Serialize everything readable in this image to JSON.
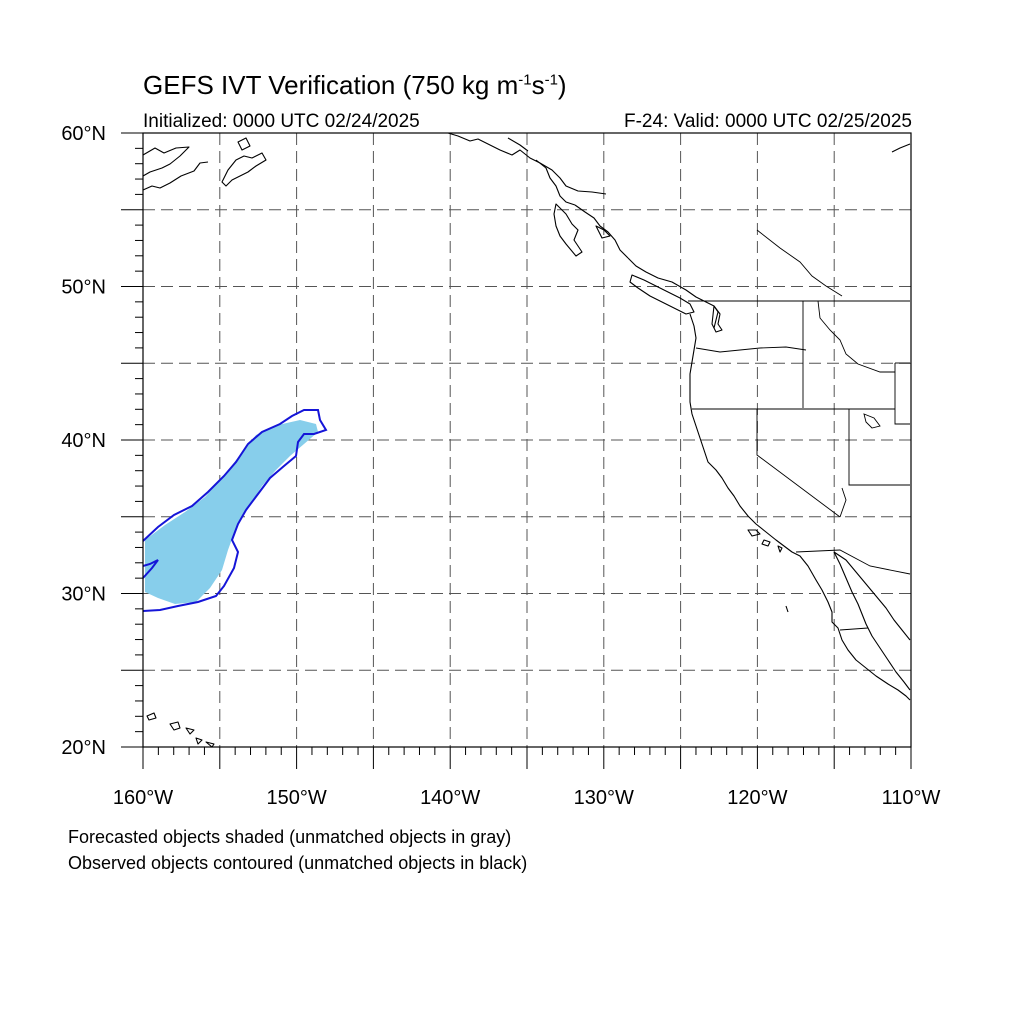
{
  "title": {
    "main": "GEFS IVT Verification (750 kg m",
    "exp1": "-1",
    "mid": "s",
    "exp2": "-1",
    "end": ")"
  },
  "subtitle": {
    "left": "Initialized: 0000 UTC 02/24/2025",
    "right": "F-24: Valid: 0000 UTC 02/25/2025"
  },
  "map": {
    "lon_range": [
      -160,
      -110
    ],
    "lat_range": [
      20,
      60
    ],
    "lon_labels": [
      "160°W",
      "150°W",
      "140°W",
      "130°W",
      "120°W",
      "110°W"
    ],
    "lat_labels": [
      "20°N",
      "30°N",
      "40°N",
      "50°N",
      "60°N"
    ],
    "grid": "dashed every 5°",
    "colors": {
      "forecast_fill": "#87CEEB",
      "observed_contour": "#1515D8",
      "coastline": "#000000",
      "grid": "#555555"
    }
  },
  "notes": [
    "Forecasted objects shaded (unmatched objects in gray)",
    "Observed objects contoured (unmatched objects in black)"
  ]
}
